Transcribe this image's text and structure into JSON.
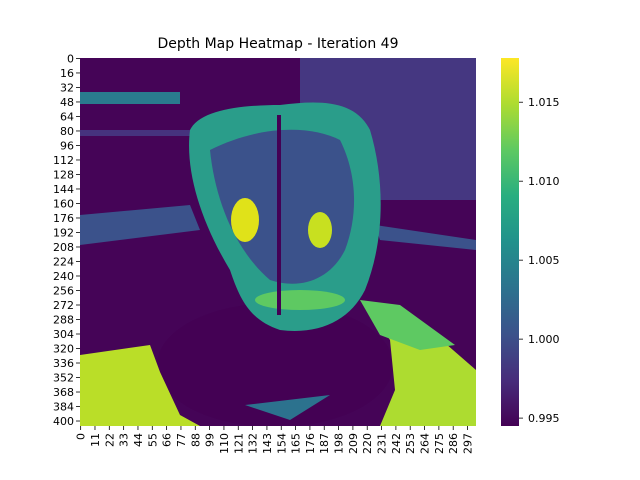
{
  "chart_data": {
    "type": "heatmap",
    "title": "Depth Map Heatmap - Iteration 49",
    "colormap": "viridis",
    "color_range": [
      0.9945,
      1.0178
    ],
    "colorbar_ticks": [
      "0.995",
      "1.000",
      "1.005",
      "1.010",
      "1.015"
    ],
    "colorbar_tick_values": [
      0.995,
      1.0,
      1.005,
      1.01,
      1.015
    ],
    "rows": 406,
    "cols": 304,
    "y_tick_labels": [
      "0",
      "16",
      "32",
      "48",
      "64",
      "80",
      "96",
      "112",
      "128",
      "144",
      "160",
      "176",
      "192",
      "208",
      "224",
      "240",
      "256",
      "272",
      "288",
      "304",
      "320",
      "336",
      "352",
      "368",
      "384",
      "400"
    ],
    "x_tick_labels": [
      "0",
      "11",
      "22",
      "33",
      "44",
      "55",
      "66",
      "77",
      "88",
      "99",
      "110",
      "121",
      "132",
      "143",
      "154",
      "165",
      "176",
      "187",
      "198",
      "209",
      "220",
      "231",
      "242",
      "253",
      "264",
      "275",
      "286",
      "297"
    ],
    "regions": [
      {
        "name": "background",
        "value": 0.9955
      },
      {
        "name": "upper-wall",
        "value": 0.9985
      },
      {
        "name": "bottom-left-floor",
        "value": 1.0165
      },
      {
        "name": "bottom-right-floor",
        "value": 1.015
      },
      {
        "name": "object-body",
        "value": 1.007
      },
      {
        "name": "object-highlight",
        "value": 1.016
      },
      {
        "name": "object-rim",
        "value": 1.011
      }
    ]
  }
}
